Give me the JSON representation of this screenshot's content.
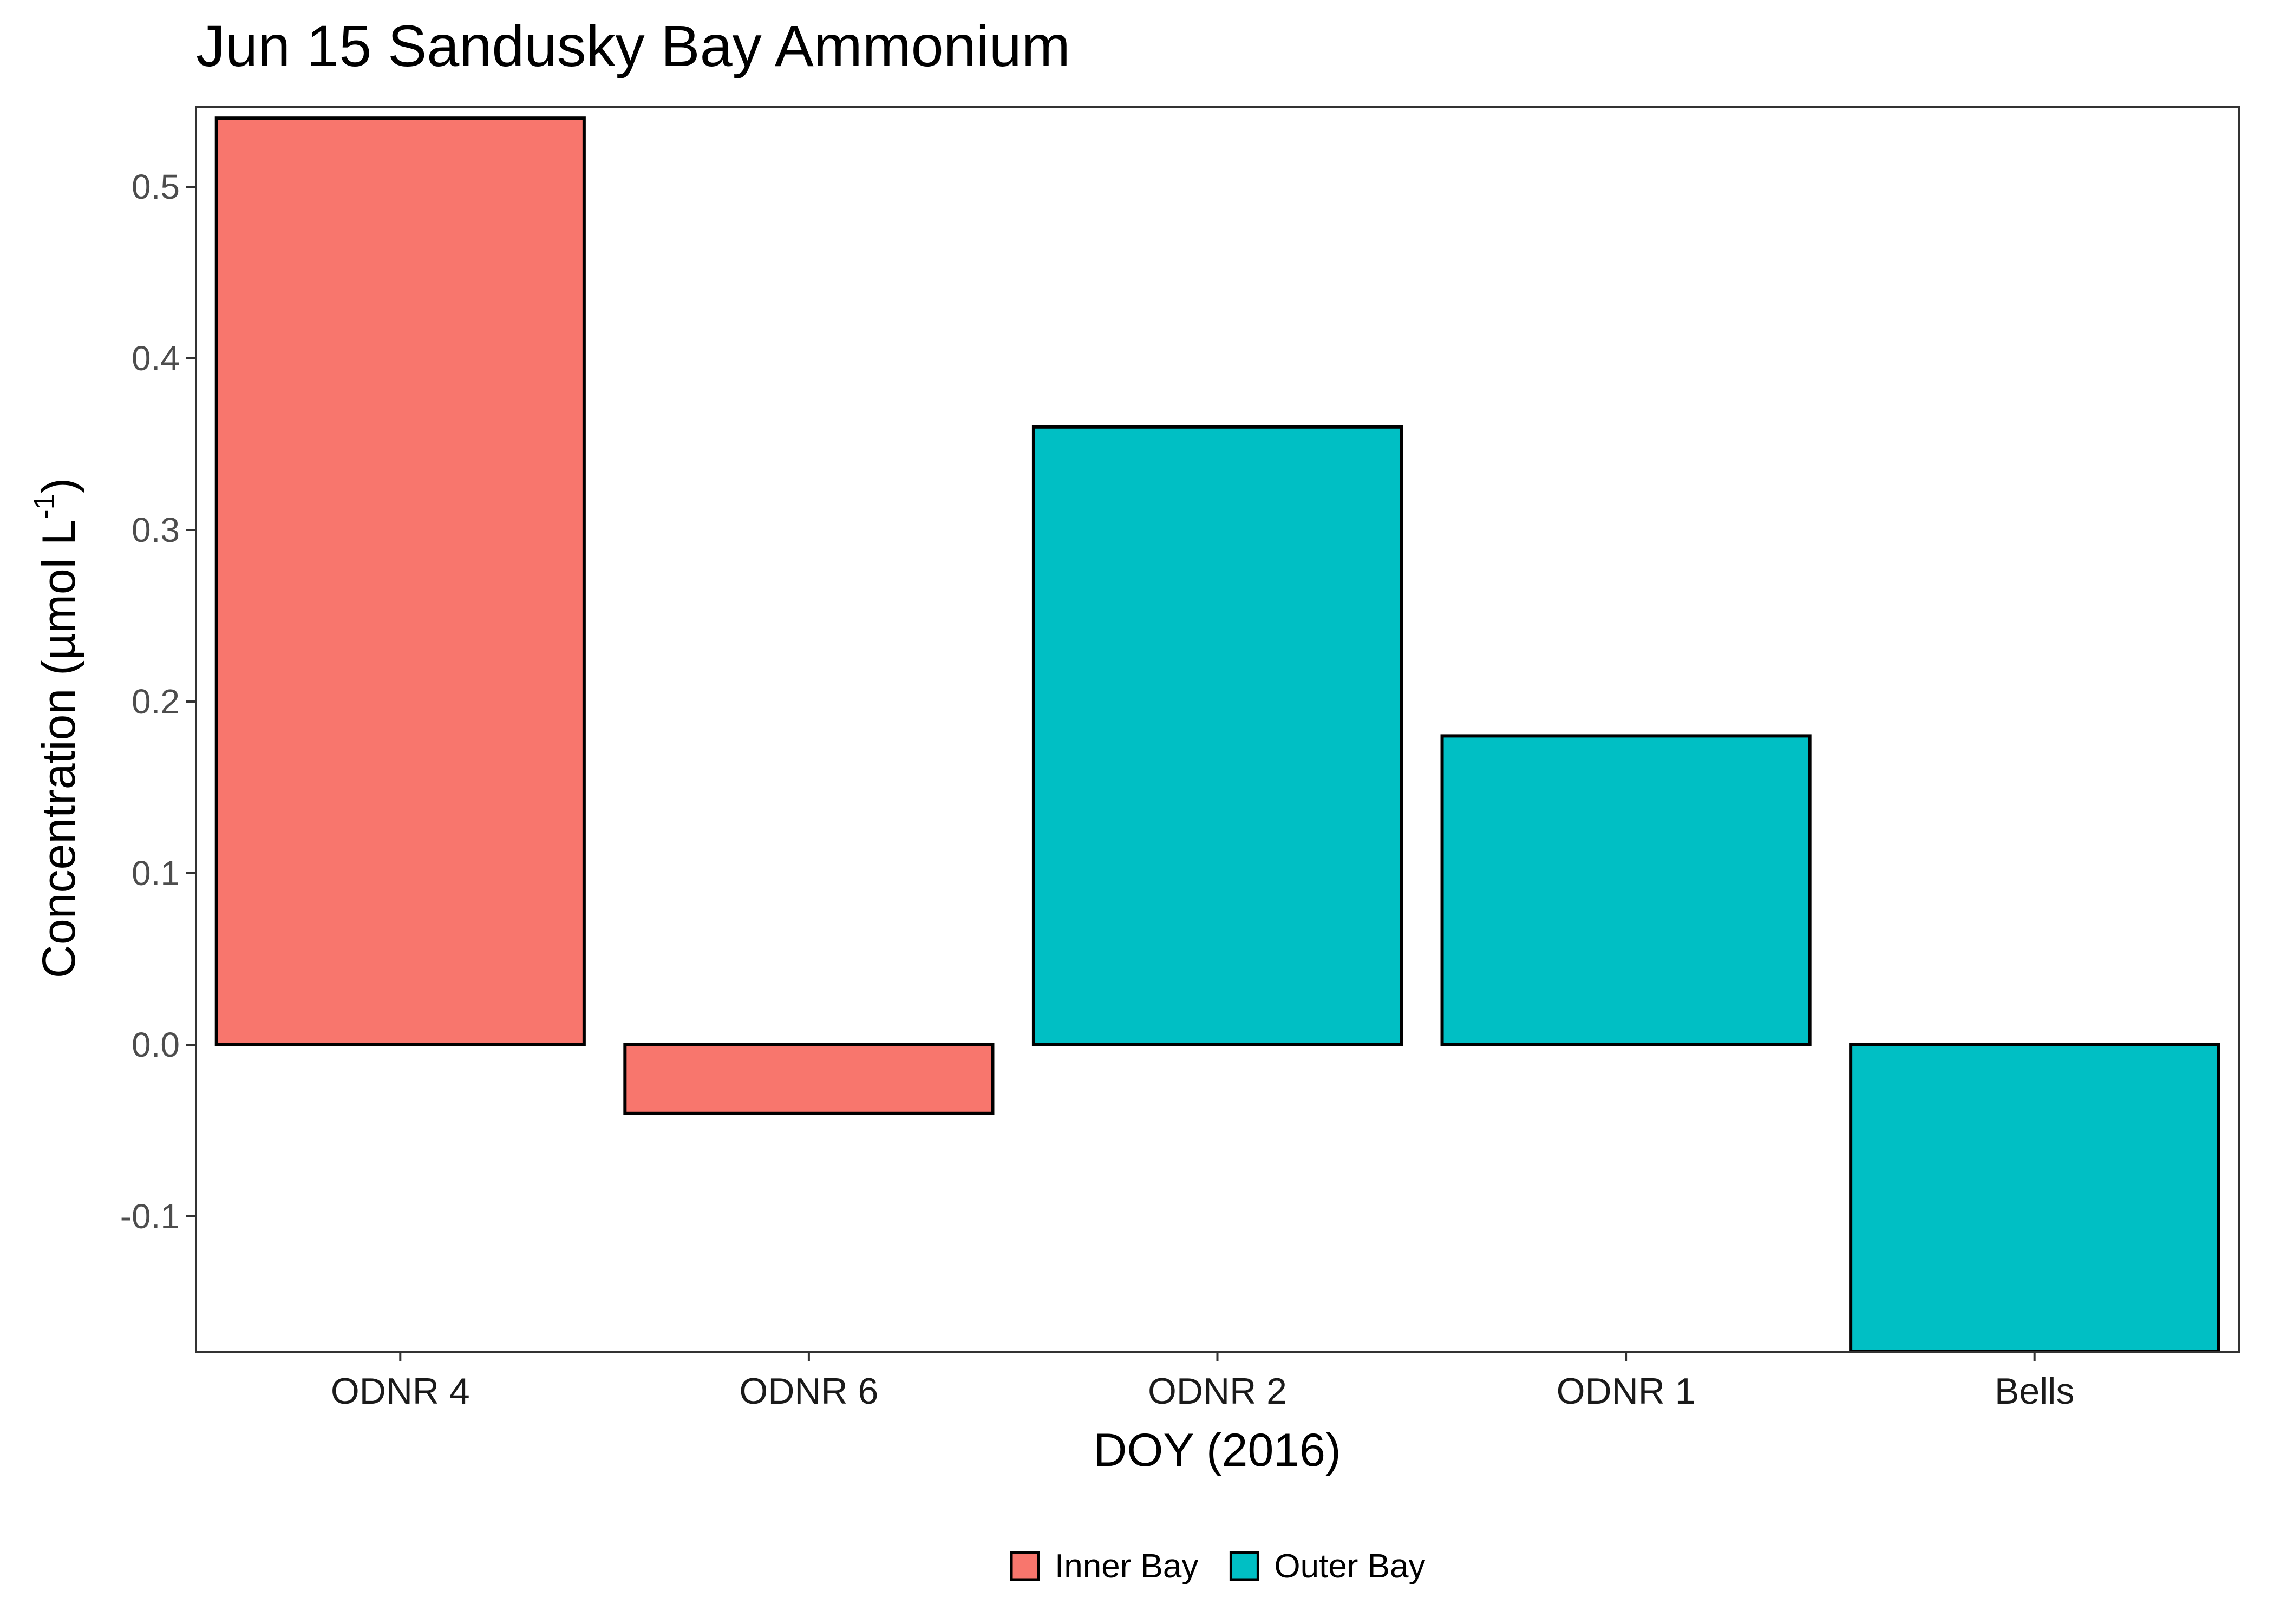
{
  "chart_data": {
    "type": "bar",
    "title": "Jun 15 Sandusky Bay Ammonium",
    "xlabel": "DOY (2016)",
    "ylabel_main": "Concentration (µmol L",
    "ylabel_sup": "-1",
    "ylabel_close": ")",
    "categories": [
      "ODNR 4",
      "ODNR 6",
      "ODNR 2",
      "ODNR 1",
      "Bells"
    ],
    "values": [
      0.54,
      -0.04,
      0.36,
      0.18,
      -0.18
    ],
    "groups": [
      "Inner Bay",
      "Inner Bay",
      "Outer Bay",
      "Outer Bay",
      "Outer Bay"
    ],
    "ylim": [
      -0.18,
      0.54
    ],
    "yticks": [
      -0.1,
      0.0,
      0.1,
      0.2,
      0.3,
      0.4,
      0.5
    ],
    "ytick_labels": [
      "-0.1",
      "0.0",
      "0.1",
      "0.2",
      "0.3",
      "0.4",
      "0.5"
    ],
    "legend": {
      "placement": "bottom",
      "entries": [
        {
          "label": "Inner Bay",
          "color": "#F8766D"
        },
        {
          "label": "Outer Bay",
          "color": "#00BFC4"
        }
      ]
    },
    "grid": false
  },
  "colors": {
    "Inner Bay": "#F8766D",
    "Outer Bay": "#00BFC4"
  }
}
